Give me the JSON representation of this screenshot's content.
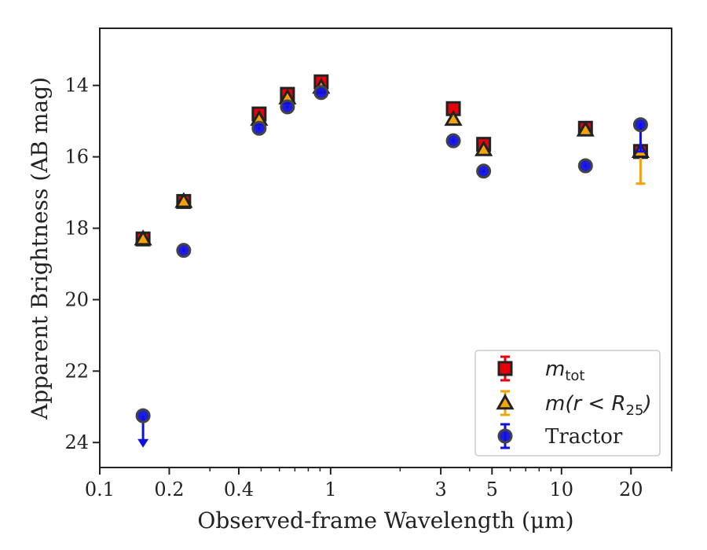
{
  "chart_data": {
    "type": "scatter",
    "xlabel": "Observed-frame Wavelength (μm)",
    "ylabel": "Apparent Brightness (AB mag)",
    "x_scale": "log",
    "xlim": [
      0.1,
      30
    ],
    "ylim": [
      24.7,
      12.4
    ],
    "y_inverted": true,
    "x_major_ticks": [
      0.1,
      0.2,
      0.4,
      1,
      3,
      5,
      10,
      20
    ],
    "x_major_tick_labels": [
      "0.1",
      "0.2",
      "0.4",
      "1",
      "3",
      "5",
      "10",
      "20"
    ],
    "y_ticks": [
      14,
      16,
      18,
      20,
      22,
      24
    ],
    "y_tick_labels": [
      "14",
      "16",
      "18",
      "20",
      "22",
      "24"
    ],
    "grid": false,
    "legend_position": "lower right",
    "series": [
      {
        "name": "m_tot",
        "legend_main": "m",
        "legend_sub": "tot",
        "marker": "square",
        "color": "#e8000b",
        "edge_color": "#222222",
        "points": [
          {
            "x": 0.154,
            "y": 18.3,
            "err": 0.05
          },
          {
            "x": 0.231,
            "y": 17.25,
            "err": 0.05
          },
          {
            "x": 0.49,
            "y": 14.8,
            "err": 0.05
          },
          {
            "x": 0.65,
            "y": 14.25,
            "err": 0.05
          },
          {
            "x": 0.91,
            "y": 13.9,
            "err": 0.05
          },
          {
            "x": 3.4,
            "y": 14.65,
            "err": 0.05
          },
          {
            "x": 4.6,
            "y": 15.65,
            "err": 0.05
          },
          {
            "x": 12.7,
            "y": 15.2,
            "err": 0.05
          },
          {
            "x": 22.0,
            "y": 15.85,
            "err": 0.05
          }
        ]
      },
      {
        "name": "m(r < R25)",
        "legend_main": "m(r < R",
        "legend_sub": "25",
        "legend_tail": ")",
        "marker": "triangle",
        "color": "#f5a30a",
        "edge_color": "#222222",
        "points": [
          {
            "x": 0.154,
            "y": 18.3,
            "err": 0.05
          },
          {
            "x": 0.231,
            "y": 17.25,
            "err": 0.05
          },
          {
            "x": 0.49,
            "y": 14.95,
            "err": 0.05
          },
          {
            "x": 0.65,
            "y": 14.35,
            "err": 0.05
          },
          {
            "x": 0.91,
            "y": 14.05,
            "err": 0.05
          },
          {
            "x": 3.4,
            "y": 14.95,
            "err": 0.05
          },
          {
            "x": 4.6,
            "y": 15.8,
            "err": 0.05
          },
          {
            "x": 12.7,
            "y": 15.25,
            "err": 0.05
          },
          {
            "x": 22.0,
            "y": 15.85,
            "err_low": 0.05,
            "err_high": 0.9
          }
        ]
      },
      {
        "name": "Tractor",
        "legend_main": "Tractor",
        "marker": "circle",
        "color": "#1010e0",
        "edge_color": "#444444",
        "points": [
          {
            "x": 0.154,
            "y": 23.25,
            "upper_limit": true,
            "arrow_to": 24.1
          },
          {
            "x": 0.231,
            "y": 18.62,
            "err": 0.05
          },
          {
            "x": 0.49,
            "y": 15.2,
            "err": 0.05
          },
          {
            "x": 0.65,
            "y": 14.6,
            "err": 0.05
          },
          {
            "x": 0.91,
            "y": 14.2,
            "err": 0.05
          },
          {
            "x": 3.4,
            "y": 15.55,
            "err": 0.05
          },
          {
            "x": 4.6,
            "y": 16.4,
            "err": 0.05
          },
          {
            "x": 12.7,
            "y": 16.25,
            "err": 0.05
          },
          {
            "x": 22.0,
            "y": 15.1,
            "err_low": 0.05,
            "err_high": 0.75
          }
        ]
      }
    ]
  }
}
